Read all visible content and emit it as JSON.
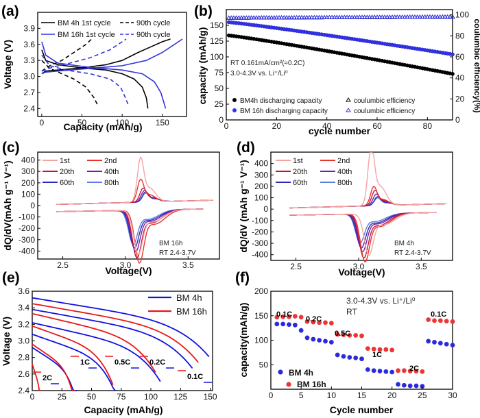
{
  "chart_data": [
    {
      "id": "a",
      "type": "line",
      "label": "(a)",
      "xlabel": "Capacity (mAh/g)",
      "ylabel": "Voltage (V)",
      "xlim": [
        -5,
        180
      ],
      "ylim": [
        2.25,
        4.2
      ],
      "xticks": [
        "0",
        "50",
        "100",
        "150"
      ],
      "yticks": [
        "2.4",
        "2.7",
        "3.0",
        "3.3",
        "3.6",
        "3.9"
      ],
      "legend": [
        "BM 4h 1st cycle",
        "90th cycle",
        "BM 16h 1st cycle",
        "90th cycle"
      ],
      "series": [
        {
          "name": "BM 4h 1st cycle charge",
          "color": "#000000",
          "dash": false,
          "points": [
            [
              0,
              3.05
            ],
            [
              5,
              3.1
            ],
            [
              20,
              3.12
            ],
            [
              50,
              3.16
            ],
            [
              80,
              3.22
            ],
            [
              100,
              3.3
            ],
            [
              120,
              3.45
            ],
            [
              135,
              3.55
            ],
            [
              150,
              3.65
            ],
            [
              160,
              3.7
            ]
          ]
        },
        {
          "name": "BM 4h 1st cycle discharge",
          "color": "#000000",
          "dash": false,
          "points": [
            [
              0,
              3.5
            ],
            [
              5,
              3.3
            ],
            [
              20,
              3.22
            ],
            [
              50,
              3.16
            ],
            [
              80,
              3.12
            ],
            [
              100,
              3.05
            ],
            [
              115,
              2.95
            ],
            [
              125,
              2.8
            ],
            [
              130,
              2.6
            ],
            [
              132,
              2.4
            ]
          ]
        },
        {
          "name": "BM 4h 90th cycle charge",
          "color": "#000000",
          "dash": true,
          "points": [
            [
              0,
              3.1
            ],
            [
              10,
              3.2
            ],
            [
              25,
              3.3
            ],
            [
              40,
              3.45
            ],
            [
              55,
              3.6
            ],
            [
              62,
              3.7
            ]
          ]
        },
        {
          "name": "BM 4h 90th cycle discharge",
          "color": "#000000",
          "dash": true,
          "points": [
            [
              0,
              3.3
            ],
            [
              10,
              3.15
            ],
            [
              25,
              3.05
            ],
            [
              40,
              2.95
            ],
            [
              55,
              2.8
            ],
            [
              65,
              2.6
            ],
            [
              70,
              2.45
            ]
          ]
        },
        {
          "name": "BM 16h 1st cycle charge",
          "color": "#3333dd",
          "dash": false,
          "points": [
            [
              0,
              3.05
            ],
            [
              5,
              3.08
            ],
            [
              20,
              3.1
            ],
            [
              60,
              3.15
            ],
            [
              100,
              3.2
            ],
            [
              130,
              3.3
            ],
            [
              150,
              3.45
            ],
            [
              165,
              3.6
            ],
            [
              175,
              3.7
            ]
          ]
        },
        {
          "name": "BM 16h 1st cycle discharge",
          "color": "#3333dd",
          "dash": false,
          "points": [
            [
              0,
              3.65
            ],
            [
              5,
              3.4
            ],
            [
              20,
              3.25
            ],
            [
              60,
              3.17
            ],
            [
              100,
              3.12
            ],
            [
              125,
              3.05
            ],
            [
              140,
              2.9
            ],
            [
              148,
              2.7
            ],
            [
              152,
              2.5
            ],
            [
              154,
              2.4
            ]
          ]
        },
        {
          "name": "BM 16h 90th cycle charge",
          "color": "#3333dd",
          "dash": true,
          "points": [
            [
              0,
              3.1
            ],
            [
              15,
              3.18
            ],
            [
              35,
              3.25
            ],
            [
              60,
              3.35
            ],
            [
              85,
              3.5
            ],
            [
              100,
              3.65
            ],
            [
              105,
              3.7
            ]
          ]
        },
        {
          "name": "BM 16h 90th cycle discharge",
          "color": "#3333dd",
          "dash": true,
          "points": [
            [
              0,
              3.4
            ],
            [
              10,
              3.2
            ],
            [
              30,
              3.12
            ],
            [
              60,
              3.05
            ],
            [
              85,
              2.95
            ],
            [
              98,
              2.8
            ],
            [
              104,
              2.6
            ],
            [
              108,
              2.45
            ]
          ]
        }
      ]
    },
    {
      "id": "b",
      "type": "scatter",
      "label": "(b)",
      "xlabel": "cycle number",
      "ylabel": "capacity (mAh/g)",
      "y2label": "coulumbic efficiency(%)",
      "xlim": [
        0,
        90
      ],
      "ylim": [
        0,
        175
      ],
      "y2lim": [
        0,
        105
      ],
      "xticks": [
        "0",
        "20",
        "40",
        "60",
        "80"
      ],
      "yticks": [
        "0",
        "25",
        "50",
        "75",
        "100",
        "125",
        "150"
      ],
      "y2ticks": [
        "0",
        "20",
        "40",
        "60",
        "80",
        "100"
      ],
      "annotations": [
        "RT 0.161mA/cm²(≈0.2C)",
        "3.0-4.3V vs. Li⁺/Li⁰"
      ],
      "legend": [
        "BM4h discharging capacity",
        "coulumbic efficiency",
        "BM 16h discharging capacity",
        "coulumbic efficiency"
      ],
      "series": [
        {
          "name": "BM4h discharging capacity",
          "color": "#000000",
          "axis": "left",
          "start": 134,
          "end": 73
        },
        {
          "name": "BM 16h discharging capacity",
          "color": "#3333ee",
          "axis": "left",
          "start": 155,
          "end": 104
        },
        {
          "name": "BM4h coulumbic efficiency",
          "color": "#000000",
          "axis": "right",
          "start": 97,
          "end": 98
        },
        {
          "name": "BM16h coulumbic efficiency",
          "color": "#3333ee",
          "axis": "right",
          "start": 97,
          "end": 98
        }
      ]
    },
    {
      "id": "c",
      "type": "line",
      "label": "(c)",
      "xlabel": "Voltage(V)",
      "ylabel": "dQ/dV(mAh g⁻¹ V⁻¹)",
      "xlim": [
        2.3,
        3.75
      ],
      "ylim": [
        -470,
        470
      ],
      "xticks": [
        "2.5",
        "3.0",
        "3.5"
      ],
      "yticks": [
        "-400",
        "-300",
        "-200",
        "-100",
        "0",
        "100",
        "200",
        "300",
        "400"
      ],
      "legend": [
        "1st",
        "2nd",
        "20th",
        "40th",
        "60th",
        "80th"
      ],
      "annotations": [
        "BM 16h",
        "RT 2.4-3.7V"
      ],
      "cycles": [
        {
          "name": "1st",
          "color": "#f4a3a3",
          "ox": 3.12,
          "oh": 350,
          "rx": 3.1,
          "rh": -350
        },
        {
          "name": "2nd",
          "color": "#e8342a",
          "ox": 3.12,
          "oh": 180,
          "rx": 3.11,
          "rh": -420
        },
        {
          "name": "20th",
          "color": "#c0143c",
          "ox": 3.14,
          "oh": 110,
          "rx": 3.09,
          "rh": -380
        },
        {
          "name": "40th",
          "color": "#7a1fa0",
          "ox": 3.15,
          "oh": 90,
          "rx": 3.08,
          "rh": -330
        },
        {
          "name": "60th",
          "color": "#2a2ab8",
          "ox": 3.16,
          "oh": 80,
          "rx": 3.07,
          "rh": -300
        },
        {
          "name": "80th",
          "color": "#5a7fe0",
          "ox": 3.16,
          "oh": 70,
          "rx": 3.06,
          "rh": -270
        }
      ]
    },
    {
      "id": "d",
      "type": "line",
      "label": "(d)",
      "xlabel": "Voltage(V)",
      "ylabel": "dQ/dV (mAh g⁻¹ V⁻¹)",
      "xlim": [
        2.3,
        3.75
      ],
      "ylim": [
        -450,
        500
      ],
      "xticks": [
        "2.5",
        "3.0",
        "3.5"
      ],
      "yticks": [
        "-400",
        "-300",
        "-200",
        "-100",
        "0",
        "100",
        "200",
        "300",
        "400"
      ],
      "legend": [
        "1st",
        "2nd",
        "20th",
        "40th",
        "60th",
        "80th"
      ],
      "annotations": [
        "BM 4h",
        "RT 2.4-3.7V"
      ],
      "cycles": [
        {
          "name": "1st",
          "color": "#f4a3a3",
          "ox": 3.1,
          "oh": 480,
          "rx": 3.08,
          "rh": -330
        },
        {
          "name": "2nd",
          "color": "#e8342a",
          "ox": 3.12,
          "oh": 150,
          "rx": 3.05,
          "rh": -380
        },
        {
          "name": "20th",
          "color": "#c0143c",
          "ox": 3.13,
          "oh": 120,
          "rx": 3.04,
          "rh": -350
        },
        {
          "name": "40th",
          "color": "#7a1fa0",
          "ox": 3.14,
          "oh": 90,
          "rx": 3.03,
          "rh": -300
        },
        {
          "name": "60th",
          "color": "#2a2ab8",
          "ox": 3.15,
          "oh": 70,
          "rx": 3.02,
          "rh": -270
        },
        {
          "name": "80th",
          "color": "#5a7fe0",
          "ox": 3.15,
          "oh": 60,
          "rx": 3.01,
          "rh": -230
        }
      ]
    },
    {
      "id": "e",
      "type": "line",
      "label": "(e)",
      "xlabel": "Capacity (mAh/g)",
      "ylabel": "Voltage (V)",
      "xlim": [
        0,
        152
      ],
      "ylim": [
        2.4,
        3.6
      ],
      "xticks": [
        "0",
        "25",
        "50",
        "75",
        "100",
        "125",
        "150"
      ],
      "yticks": [
        "2.4",
        "2.6",
        "2.8",
        "3.0",
        "3.2",
        "3.4",
        "3.6"
      ],
      "legend": [
        "BM 4h",
        "BM 16h"
      ],
      "rate_labels": [
        "2C",
        "1C",
        "0.5C",
        "0.2C",
        "0.1C"
      ],
      "series": [
        {
          "name": "BM 4h 0.1C",
          "color": "#1010e0",
          "v0": 3.52,
          "cap": 149
        },
        {
          "name": "BM 4h 0.2C",
          "color": "#1010e0",
          "v0": 3.38,
          "cap": 135
        },
        {
          "name": "BM 4h 0.5C",
          "color": "#1010e0",
          "v0": 3.22,
          "cap": 108
        },
        {
          "name": "BM 4h 1C",
          "color": "#1010e0",
          "v0": 3.08,
          "cap": 70
        },
        {
          "name": "BM 4h 2C",
          "color": "#1010e0",
          "v0": 2.92,
          "cap": 38
        },
        {
          "name": "BM 16h 0.1C",
          "color": "#e81818",
          "v0": 3.45,
          "cap": 140
        },
        {
          "name": "BM 16h 0.2C",
          "color": "#e81818",
          "v0": 3.33,
          "cap": 104
        },
        {
          "name": "BM 16h 0.5C",
          "color": "#e81818",
          "v0": 3.18,
          "cap": 68
        },
        {
          "name": "BM 16h 1C",
          "color": "#e81818",
          "v0": 2.96,
          "cap": 36
        },
        {
          "name": "BM 16h 2C",
          "color": "#e81818",
          "v0": 2.72,
          "cap": 8
        }
      ]
    },
    {
      "id": "f",
      "type": "scatter",
      "label": "(f)",
      "xlabel": "Cycle number",
      "ylabel": "capacity(mAh/g)",
      "xlim": [
        0,
        30
      ],
      "ylim": [
        0,
        200
      ],
      "xticks": [
        "0",
        "5",
        "10",
        "15",
        "20",
        "25",
        "30"
      ],
      "yticks": [
        "50",
        "100",
        "150",
        "200"
      ],
      "annotations": [
        "3.0-4.3V vs. Li⁺/Li⁰",
        "RT"
      ],
      "rate_labels": [
        "0.1C",
        "0.2C",
        "0.5C",
        "1C",
        "2C",
        "0.1C"
      ],
      "legend": [
        "BM 4h",
        "BM 16h"
      ],
      "series": [
        {
          "name": "BM 4h",
          "color": "#2b2bdd",
          "points": [
            [
              1,
              133
            ],
            [
              2,
              133
            ],
            [
              3,
              132
            ],
            [
              4,
              131
            ],
            [
              5,
              120
            ],
            [
              6,
              105
            ],
            [
              7,
              102
            ],
            [
              8,
              100
            ],
            [
              9,
              98
            ],
            [
              10,
              96
            ],
            [
              11,
              70
            ],
            [
              12,
              67
            ],
            [
              13,
              65
            ],
            [
              14,
              64
            ],
            [
              15,
              62
            ],
            [
              16,
              40
            ],
            [
              17,
              38
            ],
            [
              18,
              37
            ],
            [
              19,
              36
            ],
            [
              20,
              35
            ],
            [
              21,
              10
            ],
            [
              22,
              8
            ],
            [
              23,
              7
            ],
            [
              24,
              7
            ],
            [
              25,
              6
            ],
            [
              26,
              98
            ],
            [
              27,
              96
            ],
            [
              28,
              94
            ],
            [
              29,
              92
            ],
            [
              30,
              90
            ]
          ]
        },
        {
          "name": "BM 16h",
          "color": "#ee3535",
          "points": [
            [
              1,
              147
            ],
            [
              2,
              148
            ],
            [
              3,
              148
            ],
            [
              4,
              149
            ],
            [
              5,
              147
            ],
            [
              6,
              138
            ],
            [
              7,
              137
            ],
            [
              8,
              136
            ],
            [
              9,
              136
            ],
            [
              10,
              135
            ],
            [
              11,
              112
            ],
            [
              12,
              111
            ],
            [
              13,
              110
            ],
            [
              14,
              110
            ],
            [
              15,
              109
            ],
            [
              16,
              83
            ],
            [
              17,
              82
            ],
            [
              18,
              81
            ],
            [
              19,
              81
            ],
            [
              20,
              80
            ],
            [
              21,
              38
            ],
            [
              22,
              38
            ],
            [
              23,
              37
            ],
            [
              24,
              37
            ],
            [
              25,
              36
            ],
            [
              26,
              142
            ],
            [
              27,
              140
            ],
            [
              28,
              140
            ],
            [
              29,
              139
            ],
            [
              30,
              138
            ]
          ]
        }
      ]
    }
  ]
}
